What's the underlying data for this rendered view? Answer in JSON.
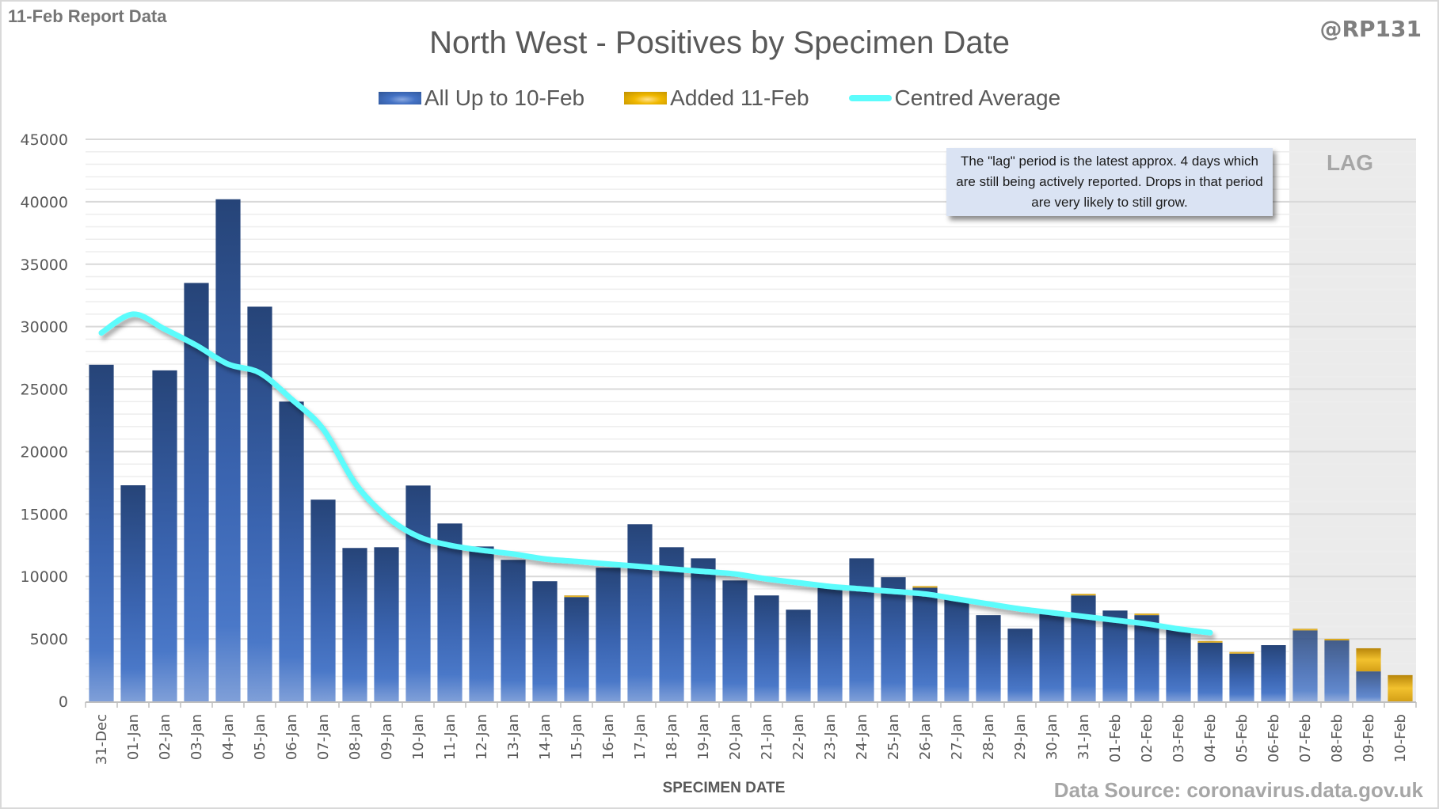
{
  "header": {
    "report_tag": "11-Feb Report Data",
    "handle": "@RP131"
  },
  "annotation": {
    "text": "The \"lag\" period is the latest approx. 4 days which are still being actively reported.  Drops in that period are very likely to still grow.",
    "lag_label": "LAG"
  },
  "footer": {
    "source": "Data Source: coronavirus.data.gov.uk"
  },
  "colors": {
    "base_series": "#4472c4",
    "added_series": "#f0b800",
    "average_line": "#5cfcfc",
    "lag_shade": "#ebebeb",
    "annotation_bg": "#dae3f3"
  },
  "chart_data": {
    "type": "bar",
    "stacked": true,
    "title": "North West - Positives by Specimen Date",
    "xlabel": "SPECIMEN DATE",
    "ylabel": "",
    "ylim": [
      0,
      45000
    ],
    "yticks": [
      0,
      5000,
      10000,
      15000,
      20000,
      25000,
      30000,
      35000,
      40000,
      45000
    ],
    "minor_grid_step": 1000,
    "grid": true,
    "legend_position": "top",
    "lag_categories": [
      "07-Feb",
      "08-Feb",
      "09-Feb",
      "10-Feb"
    ],
    "categories": [
      "31-Dec",
      "01-Jan",
      "02-Jan",
      "03-Jan",
      "04-Jan",
      "05-Jan",
      "06-Jan",
      "07-Jan",
      "08-Jan",
      "09-Jan",
      "10-Jan",
      "11-Jan",
      "12-Jan",
      "13-Jan",
      "14-Jan",
      "15-Jan",
      "16-Jan",
      "17-Jan",
      "18-Jan",
      "19-Jan",
      "20-Jan",
      "21-Jan",
      "22-Jan",
      "23-Jan",
      "24-Jan",
      "25-Jan",
      "26-Jan",
      "27-Jan",
      "28-Jan",
      "29-Jan",
      "30-Jan",
      "31-Jan",
      "01-Feb",
      "02-Feb",
      "03-Feb",
      "04-Feb",
      "05-Feb",
      "06-Feb",
      "07-Feb",
      "08-Feb",
      "09-Feb",
      "10-Feb"
    ],
    "series": [
      {
        "name": "All Up to 10-Feb",
        "type": "bar",
        "values": [
          26950,
          17300,
          26500,
          33500,
          40200,
          31600,
          24000,
          16150,
          12280,
          12340,
          17280,
          14240,
          12400,
          11330,
          9620,
          8350,
          10700,
          14180,
          12340,
          11450,
          9680,
          8480,
          7340,
          9180,
          11450,
          9940,
          9100,
          8230,
          6900,
          5820,
          7100,
          8480,
          7270,
          6900,
          5750,
          4700,
          3820,
          4500,
          5680,
          4880,
          2400,
          0
        ]
      },
      {
        "name": "Added 11-Feb",
        "type": "bar",
        "values": [
          0,
          0,
          0,
          0,
          0,
          0,
          0,
          0,
          0,
          0,
          0,
          0,
          0,
          0,
          0,
          60,
          0,
          0,
          0,
          0,
          0,
          0,
          0,
          0,
          0,
          0,
          80,
          0,
          0,
          0,
          0,
          60,
          0,
          80,
          0,
          80,
          70,
          0,
          70,
          100,
          1850,
          2100
        ]
      },
      {
        "name": "Centred Average",
        "type": "line",
        "values": [
          29500,
          31000,
          29800,
          28500,
          27000,
          26300,
          24200,
          21800,
          17500,
          14800,
          13200,
          12500,
          12100,
          11800,
          11400,
          11200,
          11000,
          10800,
          10600,
          10400,
          10200,
          9800,
          9500,
          9200,
          9000,
          8800,
          8600,
          8200,
          7800,
          7400,
          7100,
          6800,
          6500,
          6200,
          5800,
          5500,
          null,
          null,
          null,
          null,
          null,
          null
        ]
      }
    ]
  }
}
